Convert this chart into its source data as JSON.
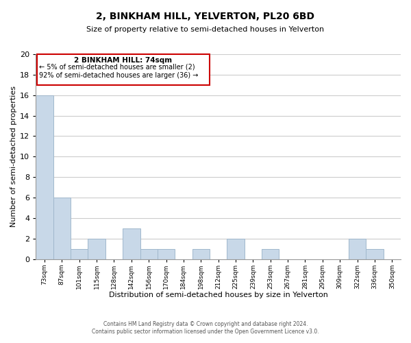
{
  "title": "2, BINKHAM HILL, YELVERTON, PL20 6BD",
  "subtitle": "Size of property relative to semi-detached houses in Yelverton",
  "xlabel": "Distribution of semi-detached houses by size in Yelverton",
  "ylabel": "Number of semi-detached properties",
  "bins": [
    "73sqm",
    "87sqm",
    "101sqm",
    "115sqm",
    "128sqm",
    "142sqm",
    "156sqm",
    "170sqm",
    "184sqm",
    "198sqm",
    "212sqm",
    "225sqm",
    "239sqm",
    "253sqm",
    "267sqm",
    "281sqm",
    "295sqm",
    "309sqm",
    "322sqm",
    "336sqm",
    "350sqm"
  ],
  "counts": [
    16,
    6,
    1,
    2,
    0,
    3,
    1,
    1,
    0,
    1,
    0,
    2,
    0,
    1,
    0,
    0,
    0,
    0,
    2,
    1,
    0
  ],
  "bar_color": "#c8d8e8",
  "bar_edge_color": "#a0b8cc",
  "annotation_box_color": "#ffffff",
  "annotation_box_edge_color": "#cc0000",
  "annotation_text_line1": "2 BINKHAM HILL: 74sqm",
  "annotation_text_line2": "← 5% of semi-detached houses are smaller (2)",
  "annotation_text_line3": "92% of semi-detached houses are larger (36) →",
  "ylim": [
    0,
    20
  ],
  "yticks": [
    0,
    2,
    4,
    6,
    8,
    10,
    12,
    14,
    16,
    18,
    20
  ],
  "footer_line1": "Contains HM Land Registry data © Crown copyright and database right 2024.",
  "footer_line2": "Contains public sector information licensed under the Open Government Licence v3.0.",
  "background_color": "#ffffff",
  "grid_color": "#cccccc"
}
